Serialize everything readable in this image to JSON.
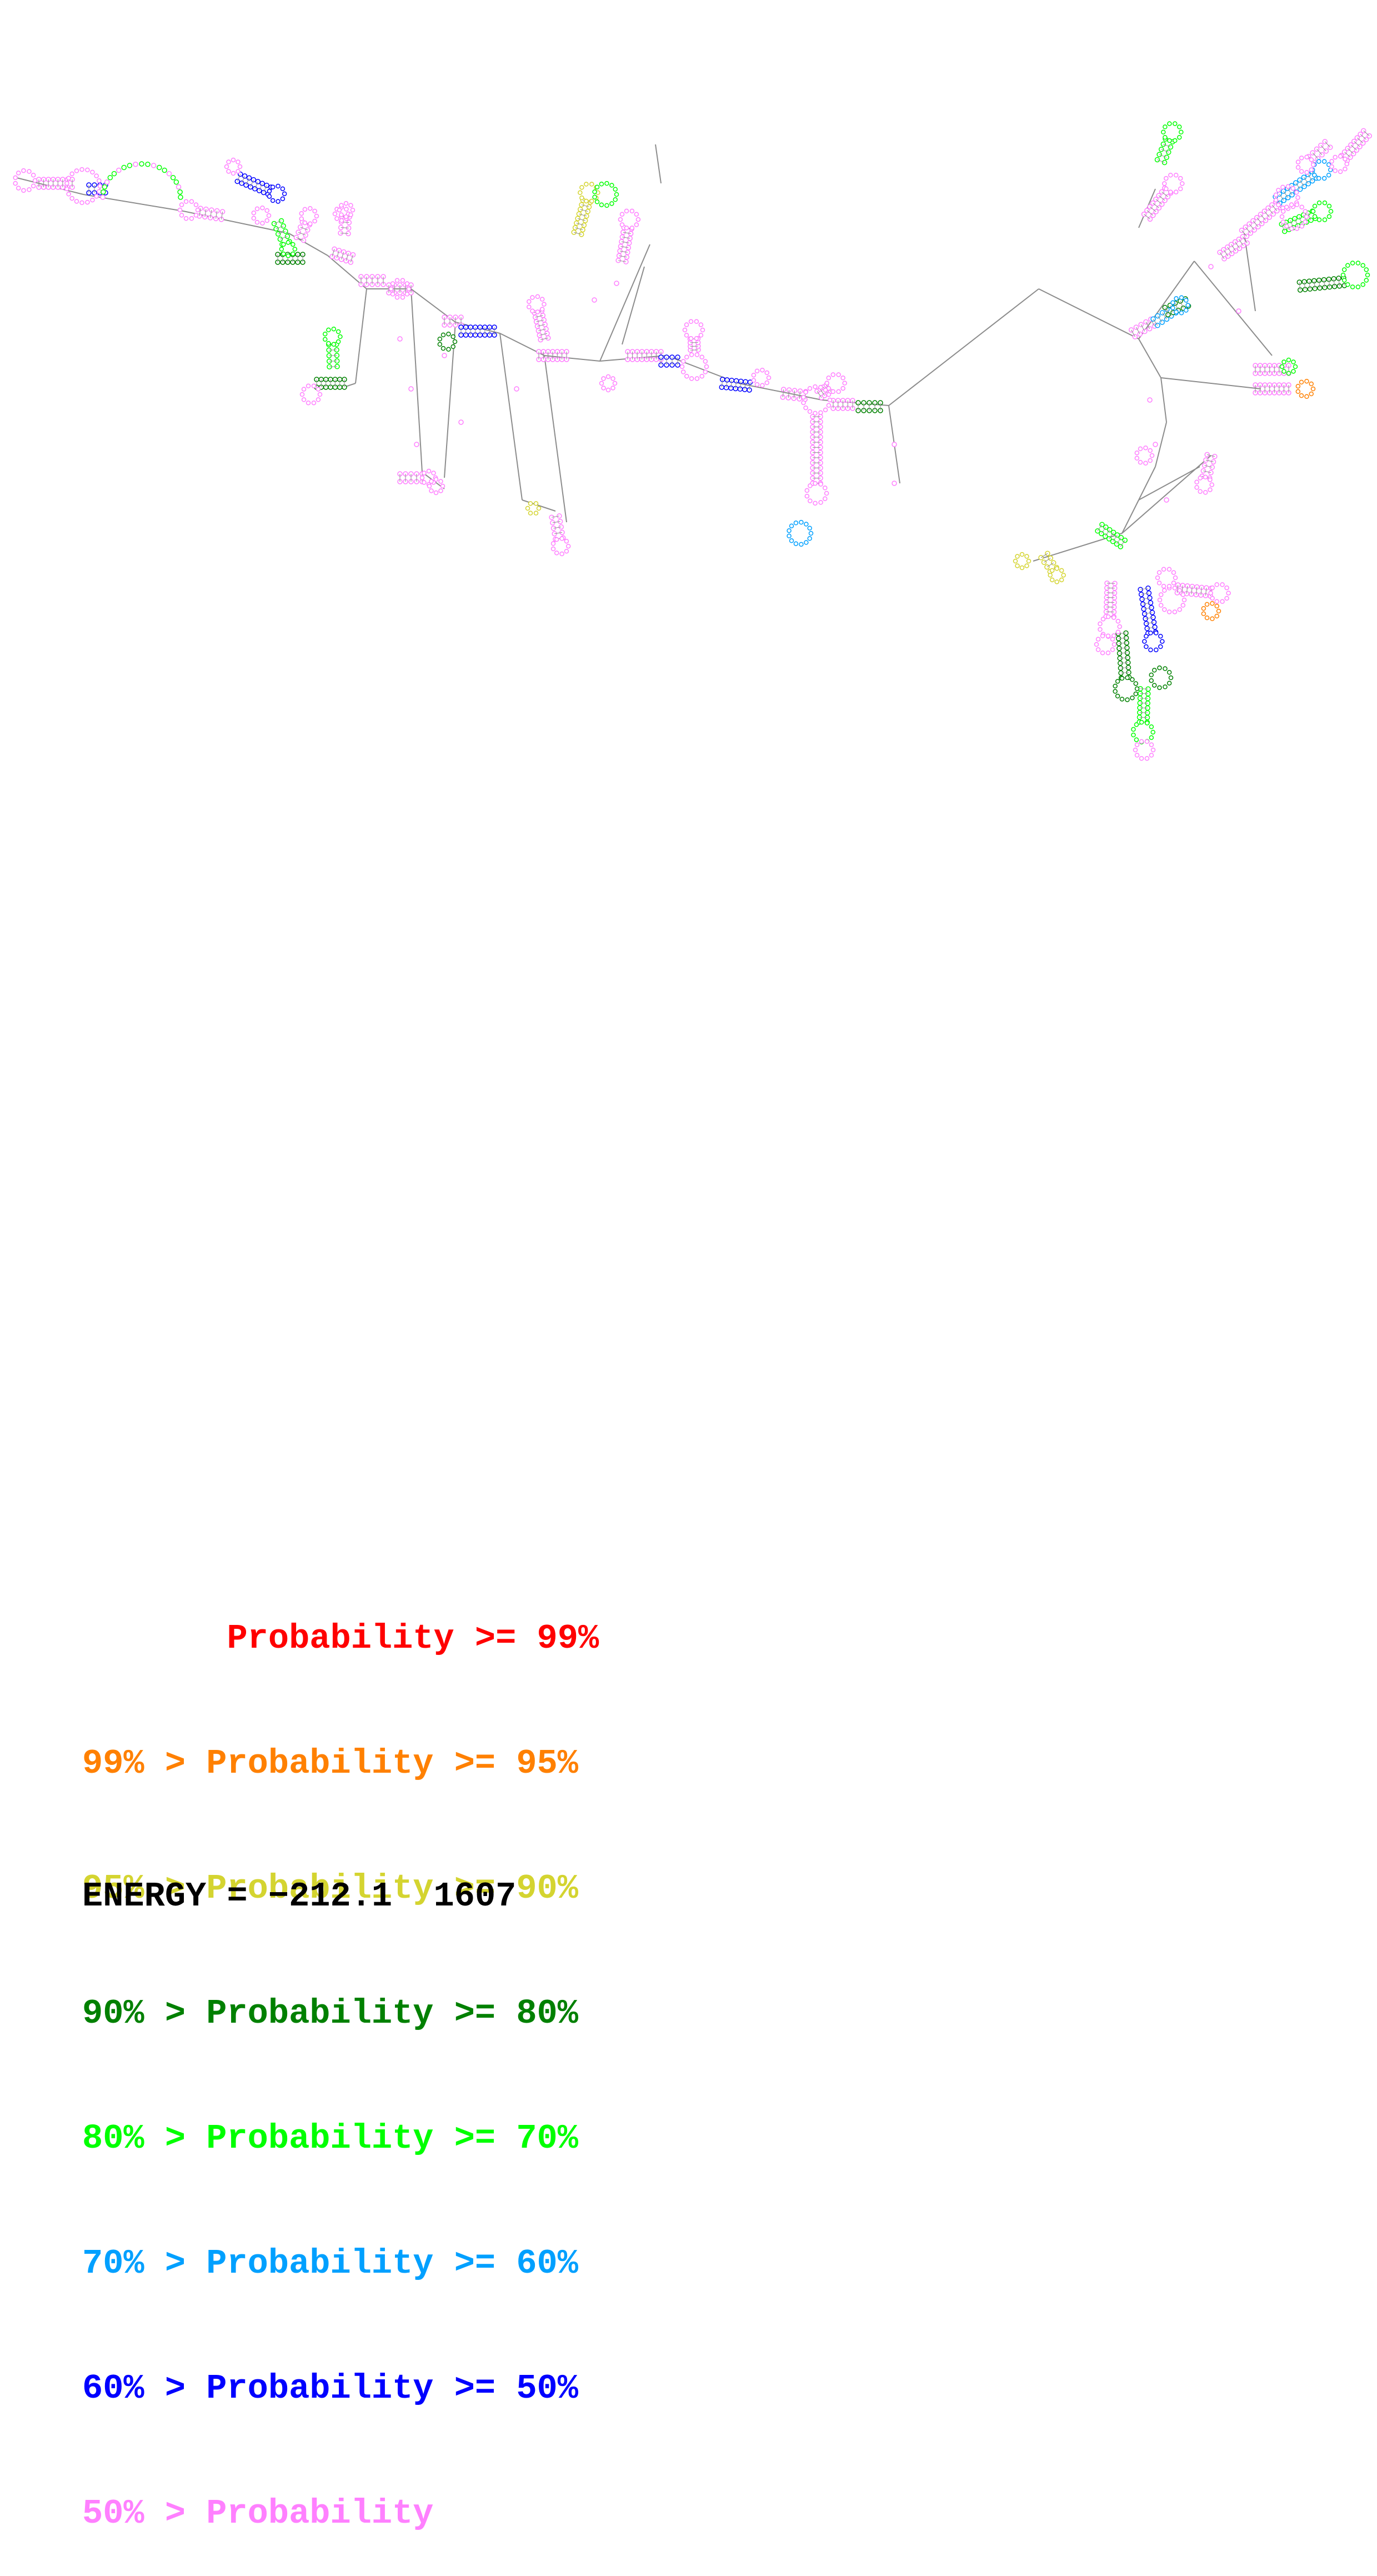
{
  "legend": {
    "rows": [
      {
        "prefix": "       ",
        "text": "Probability >= 99%",
        "color": "#ff0000"
      },
      {
        "prefix": "99% > ",
        "text": "Probability >= 95%",
        "color": "#ff8000"
      },
      {
        "prefix": "95% > ",
        "text": "Probability >= 90%",
        "color": "#d4d430"
      },
      {
        "prefix": "90% > ",
        "text": "Probability >= 80%",
        "color": "#008000"
      },
      {
        "prefix": "80% > ",
        "text": "Probability >= 70%",
        "color": "#00ff00"
      },
      {
        "prefix": "70% > ",
        "text": "Probability >= 60%",
        "color": "#00a0ff"
      },
      {
        "prefix": "60% > ",
        "text": "Probability >= 50%",
        "color": "#0000ff"
      },
      {
        "prefix": "50% > ",
        "text": "Probability",
        "color": "#ff80ff"
      }
    ]
  },
  "energy": {
    "label": "ENERGY = ",
    "value": "−212.1",
    "count": "1607"
  },
  "diagram": {
    "backbone_color": "#8c8c8c",
    "base_fill_colors": [
      "#ff80ff",
      "#00ff00",
      "#008000",
      "#0000ff",
      "#00a0ff",
      "#d4d430",
      "#ff8000",
      "#ff0000"
    ]
  }
}
